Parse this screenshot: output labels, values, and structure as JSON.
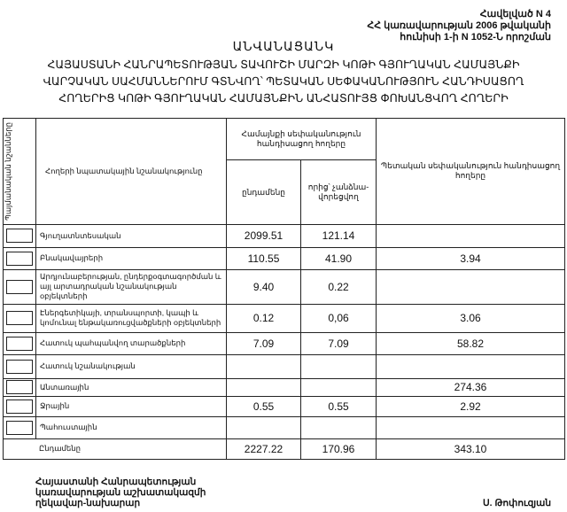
{
  "annex": {
    "lines": [
      "Հավելված N 4",
      "ՀՀ կառավարության 2006 թվականի",
      "հունիսի 1-ի N 1052-Ն որոշման"
    ]
  },
  "title": "ԱՆՎԱՆԱՑԱՆԿ",
  "subtitle": [
    "ՀԱՅԱՍՏԱՆԻ ՀԱՆՐԱՊԵՏՈՒԹՅԱՆ ՏԱՎՈՒՇԻ ՄԱՐԶԻ ԿՈԹԻ ԳՅՈՒՂԱԿԱՆ ՀԱՄԱՅՆՔԻ",
    "ՎԱՐՉԱԿԱՆ ՍԱՀՄԱՆՆԵՐՈՒՄ ԳՏՆՎՈՂ՝ ՊԵՏԱԿԱՆ ՍԵՓԱԿԱՆՈՒԹՅՈՒՆ ՀԱՆԴԻՍԱՑՈՂ",
    "ՀՈՂԵՐԻՑ ԿՈԹԻ ԳՅՈՒՂԱԿԱՆ ՀԱՄԱՅՆՔԻՆ ԱՆՀԱՏՈՒՅՑ ՓՈԽԱՆՑՎՈՂ ՀՈՂԵՐԻ"
  ],
  "table": {
    "headers": {
      "symbols": "Պայմանական նշանները",
      "purpose": "Հողերի նպատակային նշանակությունը",
      "community": "Համայնքի սեփականություն հանդիսացող հողերը",
      "total": "ընդամենը",
      "of_which": "որից՝ չանձնա-վորեցվող",
      "state": "Պետական սեփականություն հանդիսացող հողերը"
    },
    "rows": [
      {
        "name": "Գյուղատնտեսական",
        "total": "2099.51",
        "of_which": "121.14",
        "state": ""
      },
      {
        "name": "Բնակավայրերի",
        "total": "110.55",
        "of_which": "41.90",
        "state": "3.94"
      },
      {
        "name": "Արդյունաբերության, ընդերքօգտագործման և այլ արտադրական նշանակության օբյեկտների",
        "total": "9.40",
        "of_which": "0.22",
        "state": ""
      },
      {
        "name": "Էներգետիկայի, տրանսպորտի, կապի և կոմունալ ենթակառուցվածքների օբյեկտների",
        "total": "0.12",
        "of_which": "0,06",
        "state": "3.06"
      },
      {
        "name": "Հատուկ պահպանվող տարածքների",
        "total": "7.09",
        "of_which": "7.09",
        "state": "58.82"
      },
      {
        "name": "Հատուկ նշանակության",
        "total": "",
        "of_which": "",
        "state": ""
      },
      {
        "name": "Անտառային",
        "total": "",
        "of_which": "",
        "state": "274.36"
      },
      {
        "name": "Ջրային",
        "total": "0.55",
        "of_which": "0.55",
        "state": "2.92"
      },
      {
        "name": "Պահուստային",
        "total": "",
        "of_which": "",
        "state": ""
      }
    ],
    "grand_total": {
      "name": "Ընդամենը",
      "total": "2227.22",
      "of_which": "170.96",
      "state": "343.10"
    }
  },
  "footer": {
    "position": [
      "Հայաստանի Հանրապետության",
      "կառավարության աշխատակազմի",
      "ղեկավար-նախարար"
    ],
    "signatory": "Ս. Թոփուզյան"
  }
}
